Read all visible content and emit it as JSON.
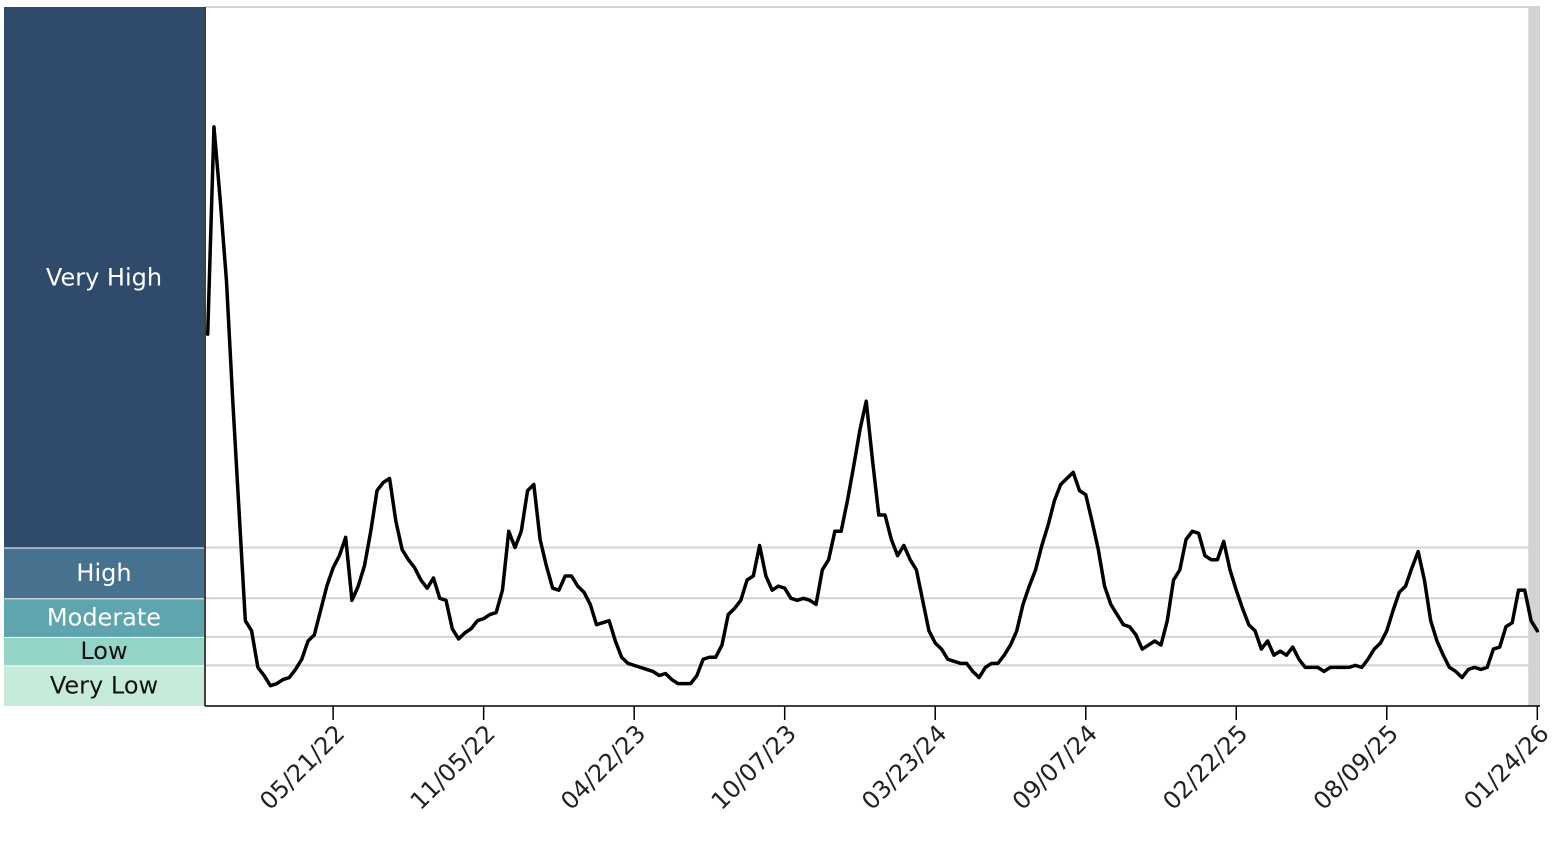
{
  "chart_data": {
    "type": "line",
    "color": "#000000",
    "levels": [
      {
        "name": "Very Low",
        "from": 0,
        "to": 2,
        "color": "#c5ecd9"
      },
      {
        "name": "Low",
        "from": 2,
        "to": 3.4,
        "color": "#95d5c8"
      },
      {
        "name": "Moderate",
        "from": 3.4,
        "to": 5.3,
        "color": "#5fa5b0"
      },
      {
        "name": "High",
        "from": 5.3,
        "to": 7.8,
        "color": "#46728f"
      },
      {
        "name": "Very High",
        "from": 7.8,
        "to": 34.4,
        "color": "#2f4a6b"
      }
    ],
    "ylim": [
      0,
      34.4
    ],
    "xlim": [
      "12/29/21",
      "01/27/26"
    ],
    "xticks": [
      "05/21/22",
      "11/05/22",
      "04/22/23",
      "10/07/23",
      "03/23/24",
      "09/07/24",
      "02/22/25",
      "08/09/25",
      "01/24/26"
    ],
    "provisional_from": "01/14/26",
    "x": [
      "01/01/22",
      "01/08/22",
      "01/15/22",
      "01/22/22",
      "01/29/22",
      "02/05/22",
      "02/12/22",
      "02/19/22",
      "02/26/22",
      "03/05/22",
      "03/12/22",
      "03/19/22",
      "03/26/22",
      "04/02/22",
      "04/09/22",
      "04/16/22",
      "04/23/22",
      "04/30/22",
      "05/07/22",
      "05/14/22",
      "05/21/22",
      "05/28/22",
      "06/04/22",
      "06/11/22",
      "06/18/22",
      "06/25/22",
      "07/02/22",
      "07/09/22",
      "07/16/22",
      "07/23/22",
      "07/30/22",
      "08/06/22",
      "08/13/22",
      "08/20/22",
      "08/27/22",
      "09/03/22",
      "09/10/22",
      "09/17/22",
      "09/24/22",
      "10/01/22",
      "10/08/22",
      "10/15/22",
      "10/22/22",
      "10/29/22",
      "11/05/22",
      "11/12/22",
      "11/19/22",
      "11/26/22",
      "12/03/22",
      "12/10/22",
      "12/17/22",
      "12/24/22",
      "12/31/22",
      "01/07/23",
      "01/14/23",
      "01/21/23",
      "01/28/23",
      "02/04/23",
      "02/11/23",
      "02/18/23",
      "02/25/23",
      "03/04/23",
      "03/11/23",
      "03/18/23",
      "03/25/23",
      "04/01/23",
      "04/08/23",
      "04/15/23",
      "04/22/23",
      "04/29/23",
      "05/06/23",
      "05/13/23",
      "05/20/23",
      "05/27/23",
      "06/03/23",
      "06/10/23",
      "06/17/23",
      "06/24/23",
      "07/01/23",
      "07/08/23",
      "07/15/23",
      "07/22/23",
      "07/29/23",
      "08/05/23",
      "08/12/23",
      "08/19/23",
      "08/26/23",
      "09/02/23",
      "09/09/23",
      "09/16/23",
      "09/23/23",
      "09/30/23",
      "10/07/23",
      "10/14/23",
      "10/21/23",
      "10/28/23",
      "11/04/23",
      "11/11/23",
      "11/18/23",
      "11/25/23",
      "12/02/23",
      "12/09/23",
      "12/16/23",
      "12/23/23",
      "12/30/23",
      "01/06/24",
      "01/13/24",
      "01/20/24",
      "01/27/24",
      "02/03/24",
      "02/10/24",
      "02/17/24",
      "02/24/24",
      "03/02/24",
      "03/09/24",
      "03/16/24",
      "03/23/24",
      "03/30/24",
      "04/06/24",
      "04/13/24",
      "04/20/24",
      "04/27/24",
      "05/04/24",
      "05/11/24",
      "05/18/24",
      "05/25/24",
      "06/01/24",
      "06/08/24",
      "06/15/24",
      "06/22/24",
      "06/29/24",
      "07/06/24",
      "07/13/24",
      "07/20/24",
      "07/27/24",
      "08/03/24",
      "08/10/24",
      "08/17/24",
      "08/24/24",
      "08/31/24",
      "09/07/24",
      "09/14/24",
      "09/21/24",
      "09/28/24",
      "10/05/24",
      "10/12/24",
      "10/19/24",
      "10/26/24",
      "11/02/24",
      "11/09/24",
      "11/16/24",
      "11/23/24",
      "11/30/24",
      "12/07/24",
      "12/14/24",
      "12/21/24",
      "12/28/24",
      "01/04/25",
      "01/11/25",
      "01/18/25",
      "01/25/25",
      "02/01/25",
      "02/08/25",
      "02/15/25",
      "02/22/25",
      "03/01/25",
      "03/08/25",
      "03/15/25",
      "03/22/25",
      "03/29/25",
      "04/05/25",
      "04/12/25",
      "04/19/25",
      "04/26/25",
      "05/03/25",
      "05/10/25",
      "05/17/25",
      "05/24/25",
      "05/31/25",
      "06/07/25",
      "06/14/25",
      "06/21/25",
      "06/28/25",
      "07/05/25",
      "07/12/25",
      "07/19/25",
      "07/26/25",
      "08/02/25",
      "08/09/25",
      "08/16/25",
      "08/23/25",
      "08/30/25",
      "09/06/25",
      "09/13/25",
      "09/20/25",
      "09/27/25",
      "10/04/25",
      "10/11/25",
      "10/18/25",
      "10/25/25",
      "11/01/25",
      "11/08/25",
      "11/15/25",
      "11/22/25",
      "11/29/25",
      "12/06/25",
      "12/13/25",
      "12/20/25",
      "12/27/25",
      "01/03/26",
      "01/10/26",
      "01/17/26",
      "01/24/26"
    ],
    "values": [
      18.3,
      28.5,
      24.9,
      20.9,
      15.0,
      9.6,
      4.2,
      3.7,
      1.9,
      1.5,
      1.0,
      1.1,
      1.3,
      1.4,
      1.8,
      2.3,
      3.2,
      3.5,
      4.7,
      5.9,
      6.8,
      7.4,
      8.3,
      5.2,
      5.9,
      6.9,
      8.6,
      10.6,
      11.0,
      11.2,
      9.1,
      7.7,
      7.2,
      6.8,
      6.2,
      5.8,
      6.3,
      5.3,
      5.2,
      3.8,
      3.3,
      3.6,
      3.8,
      4.2,
      4.3,
      4.5,
      4.6,
      5.7,
      8.6,
      7.8,
      8.6,
      10.6,
      10.9,
      8.2,
      6.9,
      5.8,
      5.7,
      6.4,
      6.4,
      5.9,
      5.6,
      5.0,
      4.0,
      4.1,
      4.2,
      3.2,
      2.4,
      2.1,
      2.0,
      1.9,
      1.8,
      1.7,
      1.5,
      1.6,
      1.3,
      1.1,
      1.1,
      1.1,
      1.5,
      2.3,
      2.4,
      2.4,
      3.0,
      4.5,
      4.8,
      5.2,
      6.2,
      6.4,
      7.9,
      6.4,
      5.7,
      5.9,
      5.8,
      5.3,
      5.2,
      5.3,
      5.2,
      5.0,
      6.7,
      7.2,
      8.6,
      8.6,
      10.1,
      11.8,
      13.6,
      15.0,
      12.1,
      9.4,
      9.4,
      8.2,
      7.4,
      7.9,
      7.2,
      6.7,
      5.2,
      3.7,
      3.1,
      2.8,
      2.3,
      2.2,
      2.1,
      2.1,
      1.7,
      1.4,
      1.9,
      2.1,
      2.1,
      2.5,
      3.0,
      3.7,
      5.0,
      5.9,
      6.7,
      7.9,
      8.9,
      10.1,
      10.9,
      11.2,
      11.5,
      10.6,
      10.4,
      9.1,
      7.7,
      5.9,
      5.0,
      4.5,
      4.0,
      3.9,
      3.5,
      2.8,
      3.0,
      3.2,
      3.0,
      4.2,
      6.2,
      6.7,
      8.2,
      8.6,
      8.5,
      7.4,
      7.2,
      7.2,
      8.1,
      6.7,
      5.7,
      4.8,
      4.0,
      3.7,
      2.8,
      3.2,
      2.5,
      2.7,
      2.5,
      2.9,
      2.3,
      1.9,
      1.9,
      1.9,
      1.7,
      1.9,
      1.9,
      1.9,
      1.9,
      2.0,
      1.9,
      2.3,
      2.8,
      3.1,
      3.7,
      4.7,
      5.6,
      5.9,
      6.8,
      7.6,
      6.2,
      4.2,
      3.2,
      2.5,
      1.9,
      1.7,
      1.4,
      1.8,
      1.9,
      1.8,
      1.9,
      2.8,
      2.9,
      3.9,
      4.1,
      5.7,
      5.7,
      4.2,
      3.7
    ]
  }
}
